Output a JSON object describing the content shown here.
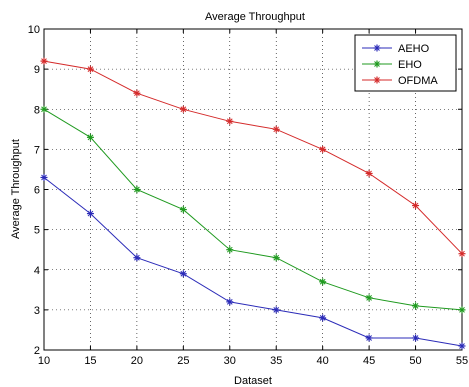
{
  "chart_data": {
    "type": "line",
    "title": "Average Throughput",
    "xlabel": "Dataset",
    "ylabel": "Average Throughput",
    "x": [
      10,
      15,
      20,
      25,
      30,
      35,
      40,
      45,
      50,
      55
    ],
    "xlim": [
      10,
      55
    ],
    "ylim": [
      2,
      10
    ],
    "xticks": [
      "10",
      "15",
      "20",
      "25",
      "30",
      "35",
      "40",
      "45",
      "50",
      "55"
    ],
    "yticks": [
      "2",
      "3",
      "4",
      "5",
      "6",
      "7",
      "8",
      "9",
      "10"
    ],
    "grid": true,
    "legend_position": "top-right",
    "series": [
      {
        "name": "AEHO",
        "color": "#2b2bb8",
        "values": [
          6.3,
          5.4,
          4.3,
          3.9,
          3.2,
          3.0,
          2.8,
          2.3,
          2.3,
          2.1
        ]
      },
      {
        "name": "EHO",
        "color": "#1f9a1f",
        "values": [
          8.0,
          7.3,
          6.0,
          5.5,
          4.5,
          4.3,
          3.7,
          3.3,
          3.1,
          3.0
        ]
      },
      {
        "name": "OFDMA",
        "color": "#d42a2a",
        "values": [
          9.2,
          9.0,
          8.4,
          8.0,
          7.7,
          7.5,
          7.0,
          6.4,
          5.6,
          4.4
        ]
      }
    ]
  }
}
